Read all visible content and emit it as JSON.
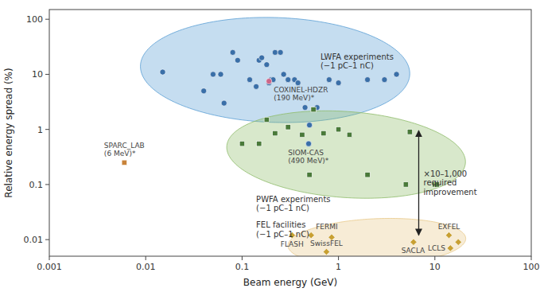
{
  "chart_data": {
    "type": "scatter",
    "log": true,
    "grid": false,
    "xlabel": "Beam energy (GeV)",
    "ylabel": "Relative energy spread (%)",
    "xlim": [
      0.001,
      100
    ],
    "ylim": [
      0.005,
      150
    ],
    "xticks": [
      0.001,
      0.01,
      0.1,
      1,
      10,
      100
    ],
    "yticks": [
      0.01,
      0.1,
      1,
      10,
      100
    ],
    "series": [
      {
        "x": [
          0.015,
          0.04,
          0.05,
          0.06,
          0.065,
          0.08,
          0.09,
          0.12,
          0.14,
          0.15,
          0.16,
          0.18,
          0.19,
          0.2,
          0.21,
          0.22,
          0.25,
          0.27,
          0.3,
          0.35,
          0.38,
          0.45,
          0.5,
          0.6,
          0.8,
          1.0,
          2.0,
          3.0,
          4.0
        ],
        "values": [
          11,
          5,
          10,
          10,
          3.0,
          25,
          18,
          8,
          6,
          18,
          20,
          15,
          7,
          8,
          8,
          25,
          25,
          10,
          8,
          8,
          7,
          2.5,
          1.2,
          2.5,
          8,
          7,
          8,
          8,
          10
        ],
        "color": "#3a6fa8",
        "marker": "circle"
      },
      {
        "x": [
          0.19
        ],
        "values": [
          7.5
        ],
        "color": "#cc6688",
        "marker": "circle",
        "labels": [
          "COXINEL-HDZR\n(190 MeV)*"
        ]
      },
      {
        "x": [
          0.49
        ],
        "values": [
          0.55
        ],
        "color": "#3a6fa8",
        "marker": "circle",
        "labels": [
          "SIOM-CAS\n(490 MeV)*"
        ]
      },
      {
        "x": [
          0.1,
          0.15,
          0.18,
          0.22,
          0.3,
          0.42,
          0.5,
          0.55,
          0.7,
          1.0,
          1.3,
          2.0,
          5.0,
          5.5,
          10.0,
          10.5
        ],
        "values": [
          0.55,
          0.55,
          1.5,
          0.85,
          1.1,
          0.8,
          0.15,
          2.3,
          0.85,
          1.0,
          0.8,
          0.15,
          0.1,
          0.9,
          0.1,
          0.1
        ],
        "color": "#4a7a3a",
        "marker": "square"
      },
      {
        "x": [
          0.006
        ],
        "values": [
          0.25
        ],
        "color": "#c8833a",
        "marker": "square",
        "labels": [
          "SPARC_LAB\n(6 MeV)*"
        ]
      },
      {
        "x": [
          0.33,
          0.52,
          0.75,
          0.85,
          6.0,
          14.0,
          14.5,
          17.5
        ],
        "values": [
          0.012,
          0.012,
          0.006,
          0.011,
          0.009,
          0.012,
          0.007,
          0.009
        ],
        "color": "#c8a032",
        "marker": "diamond",
        "labels": [
          "FLASH",
          "FERMI",
          "SwissFEL",
          null,
          "SACLA",
          "EXFEL",
          "LCLS",
          null
        ]
      }
    ],
    "ellipses": [
      {
        "center": [
          0.22,
          12.0
        ],
        "width_log": 2.8,
        "height_log": 1.9,
        "angle": -5,
        "color": "#5a9fd4"
      },
      {
        "center": [
          1.2,
          0.35
        ],
        "width_log": 2.5,
        "height_log": 1.55,
        "angle": -10,
        "color": "#8fbc6a"
      },
      {
        "center": [
          2.5,
          0.009
        ],
        "width_log": 1.85,
        "height_log": 0.85,
        "angle": 5,
        "color": "#e8c98a"
      }
    ],
    "annotations": [
      {
        "text": "LWFA experiments\n(−1 pC–1 nC)",
        "x": 0.65,
        "y": 25
      },
      {
        "text": "PWFA experiments\n(−1 pC–1 nC)",
        "x": 0.14,
        "y": 0.065
      },
      {
        "text": "FEL facilities\n(−1 pC–1 nC)",
        "x": 0.14,
        "y": 0.022
      }
    ],
    "arrow": {
      "x": 6.8,
      "y": [
        0.012,
        0.95
      ],
      "label": "×10–1,000\nrequired\nimprovement"
    }
  }
}
